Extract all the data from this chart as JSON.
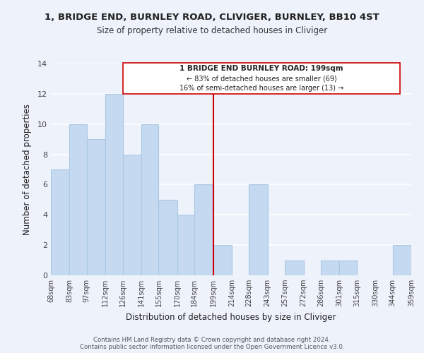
{
  "title": "1, BRIDGE END, BURNLEY ROAD, CLIVIGER, BURNLEY, BB10 4ST",
  "subtitle": "Size of property relative to detached houses in Cliviger",
  "xlabel": "Distribution of detached houses by size in Cliviger",
  "ylabel": "Number of detached properties",
  "bar_color": "#c5d9f0",
  "bar_edge_color": "#a8c8e8",
  "background_color": "#eef2fb",
  "grid_color": "#ffffff",
  "vline_x": 199,
  "vline_color": "#cc0000",
  "bins": [
    68,
    83,
    97,
    112,
    126,
    141,
    155,
    170,
    184,
    199,
    214,
    228,
    243,
    257,
    272,
    286,
    301,
    315,
    330,
    344,
    359
  ],
  "counts": [
    7,
    10,
    9,
    12,
    8,
    10,
    5,
    4,
    6,
    2,
    0,
    6,
    0,
    1,
    0,
    1,
    1,
    0,
    0,
    2
  ],
  "tick_labels": [
    "68sqm",
    "83sqm",
    "97sqm",
    "112sqm",
    "126sqm",
    "141sqm",
    "155sqm",
    "170sqm",
    "184sqm",
    "199sqm",
    "214sqm",
    "228sqm",
    "243sqm",
    "257sqm",
    "272sqm",
    "286sqm",
    "301sqm",
    "315sqm",
    "330sqm",
    "344sqm",
    "359sqm"
  ],
  "ylim": [
    0,
    14
  ],
  "yticks": [
    0,
    2,
    4,
    6,
    8,
    10,
    12,
    14
  ],
  "annotation_title": "1 BRIDGE END BURNLEY ROAD: 199sqm",
  "annotation_line1": "← 83% of detached houses are smaller (69)",
  "annotation_line2": "16% of semi-detached houses are larger (13) →",
  "footer1": "Contains HM Land Registry data © Crown copyright and database right 2024.",
  "footer2": "Contains public sector information licensed under the Open Government Licence v3.0."
}
